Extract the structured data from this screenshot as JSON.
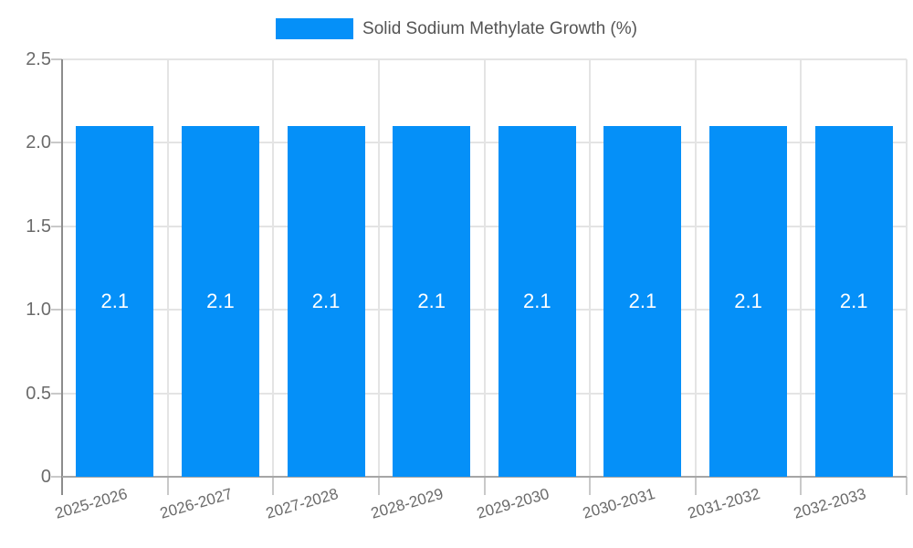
{
  "chart_data": {
    "type": "bar",
    "title": "",
    "legend": {
      "position": "top",
      "entries": [
        {
          "label": "Solid Sodium Methylate Growth (%)",
          "color": "#0590F8"
        }
      ]
    },
    "categories": [
      "2025-2026",
      "2026-2027",
      "2027-2028",
      "2028-2029",
      "2029-2030",
      "2030-2031",
      "2031-2032",
      "2032-2033"
    ],
    "series": [
      {
        "name": "Solid Sodium Methylate Growth (%)",
        "values": [
          2.1,
          2.1,
          2.1,
          2.1,
          2.1,
          2.1,
          2.1,
          2.1
        ],
        "value_labels": [
          "2.1",
          "2.1",
          "2.1",
          "2.1",
          "2.1",
          "2.1",
          "2.1",
          "2.1"
        ]
      }
    ],
    "xlabel": "",
    "ylabel": "",
    "ylim": [
      0,
      2.5
    ],
    "yticks": [
      {
        "value": 0,
        "label": "0"
      },
      {
        "value": 0.5,
        "label": "0.5"
      },
      {
        "value": 1,
        "label": "1.0"
      },
      {
        "value": 1.5,
        "label": "1.5"
      },
      {
        "value": 2,
        "label": "2.0"
      },
      {
        "value": 2.5,
        "label": "2.5"
      }
    ],
    "grid": true,
    "colors": {
      "bar": "#0590F8",
      "axis": "#8C8C8C",
      "baseline": "#A6A6A6",
      "grid": "#E4E4E4",
      "tick": "#C9C9C9",
      "tick_text": "#6B6B6B",
      "legend_text": "#545454",
      "bar_label": "#FFFFFF",
      "background": "#FFFFFF"
    }
  }
}
